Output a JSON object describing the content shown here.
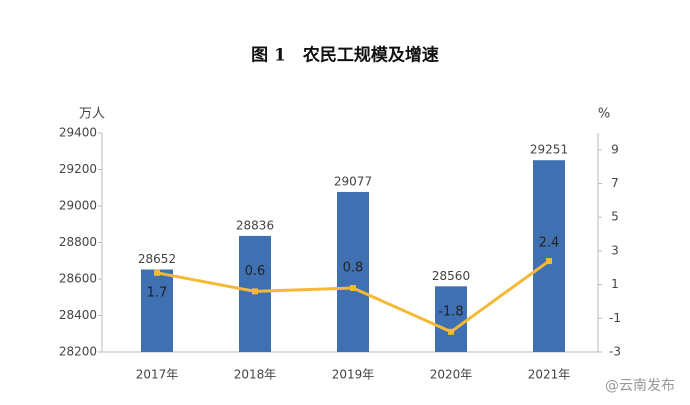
{
  "chart_data": {
    "type": "bar",
    "title": "图 1　农民工规模及增速",
    "y_label": "万人",
    "y2_label": "%",
    "categories": [
      "2017年",
      "2018年",
      "2019年",
      "2020年",
      "2021年"
    ],
    "series": [
      {
        "type": "bar",
        "color": "#3f70b2",
        "values": [
          28652,
          28836,
          29077,
          28560,
          29251
        ]
      },
      {
        "type": "line",
        "color": "#f5b935",
        "axis": "y2",
        "values": [
          1.7,
          0.6,
          0.8,
          -1.8,
          2.4
        ]
      }
    ],
    "ylim": [
      28200,
      29400
    ],
    "yticks": [
      28200,
      28400,
      28600,
      28800,
      29000,
      29200,
      29400
    ],
    "y2lim": [
      -3,
      10
    ],
    "y2ticks": [
      -3,
      -1,
      1,
      3,
      5,
      7,
      9
    ],
    "grid": false,
    "watermark": "@云南发布"
  }
}
